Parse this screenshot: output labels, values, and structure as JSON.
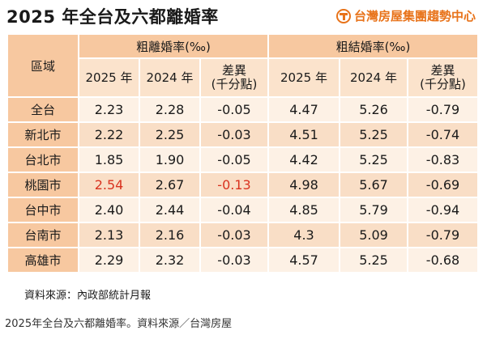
{
  "title": "2025 年全台及六都離婚率",
  "logo": {
    "text": "台灣房屋集團趨勢中心",
    "icon": "taiwan-realty-logo-icon",
    "color": "#e8731a"
  },
  "table": {
    "region_header": "區域",
    "groups": [
      {
        "label": "粗離婚率(‰)",
        "cols": [
          "2025 年",
          "2024 年",
          "差異\n(千分點)"
        ]
      },
      {
        "label": "粗結婚率(‰)",
        "cols": [
          "2025 年",
          "2024 年",
          "差異\n(千分點)"
        ]
      }
    ],
    "rows": [
      {
        "region": "全台",
        "values": [
          "2.23",
          "2.28",
          "-0.05",
          "4.47",
          "5.26",
          "-0.79"
        ],
        "highlight": false
      },
      {
        "region": "新北市",
        "values": [
          "2.22",
          "2.25",
          "-0.03",
          "4.51",
          "5.25",
          "-0.74"
        ],
        "highlight": false
      },
      {
        "region": "台北市",
        "values": [
          "1.85",
          "1.90",
          "-0.05",
          "4.42",
          "5.25",
          "-0.83"
        ],
        "highlight": false
      },
      {
        "region": "桃園市",
        "values": [
          "2.54",
          "2.67",
          "-0.13",
          "4.98",
          "5.67",
          "-0.69"
        ],
        "highlight": true
      },
      {
        "region": "台中市",
        "values": [
          "2.40",
          "2.44",
          "-0.04",
          "4.85",
          "5.79",
          "-0.94"
        ],
        "highlight": false
      },
      {
        "region": "台南市",
        "values": [
          "2.13",
          "2.16",
          "-0.03",
          "4.3",
          "5.09",
          "-0.79"
        ],
        "highlight": false
      },
      {
        "region": "高雄市",
        "values": [
          "2.29",
          "2.32",
          "-0.03",
          "4.57",
          "5.25",
          "-0.68"
        ],
        "highlight": false
      }
    ]
  },
  "source": "資料來源：內政部統計月報",
  "caption": "2025年全台及六都離婚率。資料來源／台灣房屋",
  "colors": {
    "header": "#f7c8a0",
    "subheader": "#fbe3cc",
    "row_light": "#fdf1e5",
    "row_dark": "#f9dec6",
    "highlight_text": "#d9321f"
  }
}
